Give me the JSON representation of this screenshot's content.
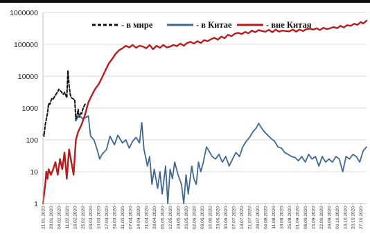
{
  "chart_data": {
    "type": "line",
    "title": "",
    "xlabel": "",
    "ylabel": "",
    "y_scale": "log",
    "ylim": [
      1,
      1000000
    ],
    "y_ticks": [
      "1",
      "10",
      "100",
      "1000",
      "10000",
      "100000",
      "1000000"
    ],
    "x_range": [
      "2020-01-21",
      "2020-11-01"
    ],
    "x_ticks": [
      "21.01.2020",
      "28.01.2020",
      "04.02.2020",
      "11.02.2020",
      "18.02.2020",
      "25.02.2020",
      "03.03.2020",
      "10.03.2020",
      "17.03.2020",
      "24.03.2020",
      "31.03.2020",
      "07.04.2020",
      "14.04.2020",
      "21.04.2020",
      "28.04.2020",
      "05.05.2020",
      "12.05.2020",
      "19.05.2020",
      "26.05.2020",
      "02.06.2020",
      "09.06.2020",
      "16.06.2020",
      "23.06.2020",
      "30.06.2020",
      "07.07.2020",
      "14.07.2020",
      "21.07.2020",
      "28.07.2020",
      "04.08.2020",
      "11.08.2020",
      "18.08.2020",
      "25.08.2020",
      "01.09.2020",
      "08.09.2020",
      "15.09.2020",
      "22.09.2020",
      "29.09.2020",
      "06.10.2020",
      "13.10.2020",
      "20.10.2020",
      "27.10.2020"
    ],
    "grid": true,
    "legend_position": "top",
    "series": [
      {
        "name": "- в мире",
        "color": "#111111",
        "style": "dashed",
        "points": [
          [
            "2020-01-21",
            150
          ],
          [
            "2020-01-22",
            130
          ],
          [
            "2020-01-23",
            300
          ],
          [
            "2020-01-24",
            450
          ],
          [
            "2020-01-25",
            700
          ],
          [
            "2020-01-26",
            1400
          ],
          [
            "2020-01-27",
            1300
          ],
          [
            "2020-01-28",
            1700
          ],
          [
            "2020-01-29",
            2000
          ],
          [
            "2020-01-30",
            1900
          ],
          [
            "2020-01-31",
            2200
          ],
          [
            "2020-02-01",
            2500
          ],
          [
            "2020-02-02",
            2900
          ],
          [
            "2020-02-03",
            3200
          ],
          [
            "2020-02-04",
            3900
          ],
          [
            "2020-02-05",
            3500
          ],
          [
            "2020-02-06",
            3300
          ],
          [
            "2020-02-07",
            2900
          ],
          [
            "2020-02-08",
            2700
          ],
          [
            "2020-02-09",
            3100
          ],
          [
            "2020-02-10",
            2600
          ],
          [
            "2020-02-11",
            2100
          ],
          [
            "2020-02-12",
            15000
          ],
          [
            "2020-02-13",
            5200
          ],
          [
            "2020-02-14",
            2700
          ],
          [
            "2020-02-15",
            2100
          ],
          [
            "2020-02-16",
            2000
          ],
          [
            "2020-02-17",
            1900
          ],
          [
            "2020-02-18",
            1800
          ],
          [
            "2020-02-19",
            400
          ],
          [
            "2020-02-20",
            600
          ],
          [
            "2020-02-21",
            900
          ],
          [
            "2020-02-22",
            500
          ],
          [
            "2020-02-23",
            700
          ],
          [
            "2020-02-24",
            650
          ],
          [
            "2020-02-25",
            900
          ],
          [
            "2020-02-26",
            1100
          ],
          [
            "2020-02-27",
            1300
          ],
          [
            "2020-02-28",
            1400
          ]
        ]
      },
      {
        "name": "- в Китае",
        "color": "#3f6793",
        "style": "solid",
        "points": [
          [
            "2020-02-19",
            400
          ],
          [
            "2020-02-22",
            600
          ],
          [
            "2020-02-25",
            450
          ],
          [
            "2020-03-01",
            560
          ],
          [
            "2020-03-03",
            130
          ],
          [
            "2020-03-06",
            100
          ],
          [
            "2020-03-09",
            45
          ],
          [
            "2020-03-11",
            25
          ],
          [
            "2020-03-13",
            35
          ],
          [
            "2020-03-17",
            50
          ],
          [
            "2020-03-20",
            130
          ],
          [
            "2020-03-24",
            70
          ],
          [
            "2020-03-27",
            140
          ],
          [
            "2020-03-31",
            80
          ],
          [
            "2020-04-03",
            100
          ],
          [
            "2020-04-06",
            55
          ],
          [
            "2020-04-09",
            90
          ],
          [
            "2020-04-12",
            120
          ],
          [
            "2020-04-15",
            80
          ],
          [
            "2020-04-17",
            350
          ],
          [
            "2020-04-19",
            50
          ],
          [
            "2020-04-22",
            15
          ],
          [
            "2020-04-24",
            30
          ],
          [
            "2020-04-26",
            4
          ],
          [
            "2020-04-28",
            12
          ],
          [
            "2020-05-01",
            3
          ],
          [
            "2020-05-03",
            10
          ],
          [
            "2020-05-05",
            2
          ],
          [
            "2020-05-08",
            15
          ],
          [
            "2020-05-10",
            1
          ],
          [
            "2020-05-12",
            12
          ],
          [
            "2020-05-14",
            6
          ],
          [
            "2020-05-16",
            20
          ],
          [
            "2020-05-19",
            8
          ],
          [
            "2020-05-22",
            4
          ],
          [
            "2020-05-24",
            1
          ],
          [
            "2020-05-26",
            8
          ],
          [
            "2020-05-28",
            2
          ],
          [
            "2020-05-31",
            15
          ],
          [
            "2020-06-02",
            6
          ],
          [
            "2020-06-04",
            4
          ],
          [
            "2020-06-06",
            20
          ],
          [
            "2020-06-08",
            10
          ],
          [
            "2020-06-10",
            18
          ],
          [
            "2020-06-13",
            60
          ],
          [
            "2020-06-16",
            40
          ],
          [
            "2020-06-18",
            30
          ],
          [
            "2020-06-21",
            25
          ],
          [
            "2020-06-24",
            35
          ],
          [
            "2020-06-27",
            20
          ],
          [
            "2020-06-30",
            30
          ],
          [
            "2020-07-03",
            15
          ],
          [
            "2020-07-06",
            25
          ],
          [
            "2020-07-09",
            40
          ],
          [
            "2020-07-12",
            30
          ],
          [
            "2020-07-15",
            60
          ],
          [
            "2020-07-18",
            90
          ],
          [
            "2020-07-21",
            120
          ],
          [
            "2020-07-24",
            180
          ],
          [
            "2020-07-27",
            240
          ],
          [
            "2020-07-29",
            330
          ],
          [
            "2020-07-31",
            250
          ],
          [
            "2020-08-03",
            180
          ],
          [
            "2020-08-06",
            140
          ],
          [
            "2020-08-09",
            110
          ],
          [
            "2020-08-12",
            90
          ],
          [
            "2020-08-15",
            60
          ],
          [
            "2020-08-18",
            55
          ],
          [
            "2020-08-21",
            40
          ],
          [
            "2020-08-24",
            35
          ],
          [
            "2020-08-27",
            30
          ],
          [
            "2020-08-30",
            28
          ],
          [
            "2020-09-02",
            22
          ],
          [
            "2020-09-05",
            30
          ],
          [
            "2020-09-08",
            20
          ],
          [
            "2020-09-11",
            35
          ],
          [
            "2020-09-14",
            25
          ],
          [
            "2020-09-17",
            30
          ],
          [
            "2020-09-20",
            15
          ],
          [
            "2020-09-23",
            30
          ],
          [
            "2020-09-26",
            20
          ],
          [
            "2020-09-29",
            25
          ],
          [
            "2020-10-02",
            20
          ],
          [
            "2020-10-05",
            30
          ],
          [
            "2020-10-08",
            25
          ],
          [
            "2020-10-11",
            10
          ],
          [
            "2020-10-14",
            30
          ],
          [
            "2020-10-17",
            25
          ],
          [
            "2020-10-20",
            35
          ],
          [
            "2020-10-23",
            30
          ],
          [
            "2020-10-26",
            20
          ],
          [
            "2020-10-29",
            45
          ],
          [
            "2020-11-01",
            60
          ]
        ]
      },
      {
        "name": "- вне Китая",
        "color": "#b81c1c",
        "style": "solid",
        "points": [
          [
            "2020-01-21",
            1
          ],
          [
            "2020-01-22",
            2
          ],
          [
            "2020-01-23",
            4
          ],
          [
            "2020-01-24",
            10
          ],
          [
            "2020-01-25",
            6
          ],
          [
            "2020-01-26",
            12
          ],
          [
            "2020-01-28",
            8
          ],
          [
            "2020-01-30",
            12
          ],
          [
            "2020-02-01",
            20
          ],
          [
            "2020-02-03",
            8
          ],
          [
            "2020-02-05",
            25
          ],
          [
            "2020-02-07",
            12
          ],
          [
            "2020-02-09",
            40
          ],
          [
            "2020-02-11",
            6
          ],
          [
            "2020-02-13",
            50
          ],
          [
            "2020-02-15",
            20
          ],
          [
            "2020-02-17",
            8
          ],
          [
            "2020-02-19",
            100
          ],
          [
            "2020-02-21",
            180
          ],
          [
            "2020-02-24",
            300
          ],
          [
            "2020-02-27",
            600
          ],
          [
            "2020-03-01",
            1500
          ],
          [
            "2020-03-04",
            2500
          ],
          [
            "2020-03-07",
            4000
          ],
          [
            "2020-03-10",
            5500
          ],
          [
            "2020-03-13",
            9000
          ],
          [
            "2020-03-16",
            15000
          ],
          [
            "2020-03-19",
            25000
          ],
          [
            "2020-03-22",
            35000
          ],
          [
            "2020-03-25",
            50000
          ],
          [
            "2020-03-28",
            65000
          ],
          [
            "2020-03-31",
            75000
          ],
          [
            "2020-04-03",
            90000
          ],
          [
            "2020-04-06",
            80000
          ],
          [
            "2020-04-09",
            95000
          ],
          [
            "2020-04-12",
            78000
          ],
          [
            "2020-04-15",
            90000
          ],
          [
            "2020-04-18",
            85000
          ],
          [
            "2020-04-21",
            75000
          ],
          [
            "2020-04-24",
            95000
          ],
          [
            "2020-04-27",
            70000
          ],
          [
            "2020-04-30",
            90000
          ],
          [
            "2020-05-03",
            78000
          ],
          [
            "2020-05-06",
            95000
          ],
          [
            "2020-05-09",
            80000
          ],
          [
            "2020-05-12",
            85000
          ],
          [
            "2020-05-15",
            95000
          ],
          [
            "2020-05-18",
            88000
          ],
          [
            "2020-05-21",
            105000
          ],
          [
            "2020-05-24",
            90000
          ],
          [
            "2020-05-27",
            110000
          ],
          [
            "2020-05-30",
            120000
          ],
          [
            "2020-06-02",
            105000
          ],
          [
            "2020-06-05",
            125000
          ],
          [
            "2020-06-08",
            110000
          ],
          [
            "2020-06-11",
            135000
          ],
          [
            "2020-06-14",
            125000
          ],
          [
            "2020-06-17",
            145000
          ],
          [
            "2020-06-20",
            160000
          ],
          [
            "2020-06-23",
            140000
          ],
          [
            "2020-06-26",
            175000
          ],
          [
            "2020-06-29",
            155000
          ],
          [
            "2020-07-02",
            200000
          ],
          [
            "2020-07-05",
            180000
          ],
          [
            "2020-07-08",
            215000
          ],
          [
            "2020-07-11",
            230000
          ],
          [
            "2020-07-14",
            210000
          ],
          [
            "2020-07-17",
            245000
          ],
          [
            "2020-07-20",
            220000
          ],
          [
            "2020-07-23",
            270000
          ],
          [
            "2020-07-26",
            240000
          ],
          [
            "2020-07-29",
            280000
          ],
          [
            "2020-08-01",
            260000
          ],
          [
            "2020-08-04",
            250000
          ],
          [
            "2020-08-07",
            285000
          ],
          [
            "2020-08-10",
            240000
          ],
          [
            "2020-08-13",
            290000
          ],
          [
            "2020-08-16",
            250000
          ],
          [
            "2020-08-19",
            270000
          ],
          [
            "2020-08-22",
            260000
          ],
          [
            "2020-08-25",
            255000
          ],
          [
            "2020-08-28",
            290000
          ],
          [
            "2020-08-31",
            250000
          ],
          [
            "2020-09-03",
            290000
          ],
          [
            "2020-09-06",
            260000
          ],
          [
            "2020-09-09",
            300000
          ],
          [
            "2020-09-12",
            310000
          ],
          [
            "2020-09-15",
            290000
          ],
          [
            "2020-09-18",
            320000
          ],
          [
            "2020-09-21",
            280000
          ],
          [
            "2020-09-24",
            330000
          ],
          [
            "2020-09-27",
            300000
          ],
          [
            "2020-09-30",
            320000
          ],
          [
            "2020-10-03",
            350000
          ],
          [
            "2020-10-06",
            320000
          ],
          [
            "2020-10-09",
            380000
          ],
          [
            "2020-10-12",
            340000
          ],
          [
            "2020-10-15",
            400000
          ],
          [
            "2020-10-18",
            380000
          ],
          [
            "2020-10-21",
            440000
          ],
          [
            "2020-10-24",
            410000
          ],
          [
            "2020-10-27",
            500000
          ],
          [
            "2020-10-29",
            450000
          ],
          [
            "2020-11-01",
            550000
          ]
        ]
      }
    ]
  }
}
